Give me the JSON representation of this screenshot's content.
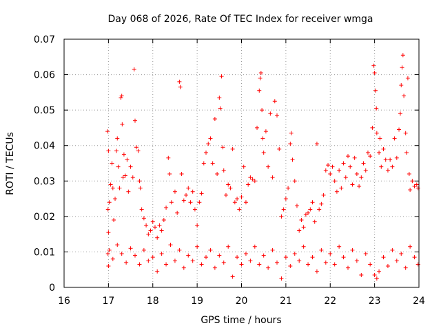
{
  "chart_data": {
    "type": "scatter",
    "title": "Day 068 of 2026, Rate Of TEC Index for receiver wmga",
    "xlabel": "GPS time / hours",
    "ylabel": "ROTI / TECUs",
    "xlim": [
      16,
      24
    ],
    "ylim": [
      0,
      0.07
    ],
    "x_ticks": [
      "16",
      "17",
      "18",
      "19",
      "20",
      "21",
      "22",
      "23",
      "24"
    ],
    "y_ticks": [
      "0",
      "0.01",
      "0.02",
      "0.03",
      "0.04",
      "0.05",
      "0.06",
      "0.07"
    ],
    "grid": true,
    "marker": "plus",
    "color": "#ff0000",
    "series": [
      {
        "values": [
          [
            16.98,
            0.044
          ],
          [
            17.0,
            0.0385
          ],
          [
            17.02,
            0.024
          ],
          [
            16.99,
            0.022
          ],
          [
            17.0,
            0.0155
          ],
          [
            16.99,
            0.0095
          ],
          [
            17.0,
            0.006
          ],
          [
            17.05,
            0.029
          ],
          [
            17.08,
            0.035
          ],
          [
            17.1,
            0.028
          ],
          [
            17.12,
            0.019
          ],
          [
            17.15,
            0.025
          ],
          [
            17.18,
            0.0385
          ],
          [
            17.2,
            0.042
          ],
          [
            17.22,
            0.034
          ],
          [
            17.25,
            0.028
          ],
          [
            17.28,
            0.0535
          ],
          [
            17.3,
            0.054
          ],
          [
            17.31,
            0.046
          ],
          [
            17.33,
            0.031
          ],
          [
            17.35,
            0.0375
          ],
          [
            17.38,
            0.0315
          ],
          [
            17.42,
            0.036
          ],
          [
            17.45,
            0.027
          ],
          [
            17.5,
            0.034
          ],
          [
            17.55,
            0.031
          ],
          [
            17.58,
            0.0615
          ],
          [
            17.6,
            0.047
          ],
          [
            17.63,
            0.0395
          ],
          [
            17.67,
            0.0385
          ],
          [
            17.7,
            0.03
          ],
          [
            17.72,
            0.028
          ],
          [
            17.75,
            0.022
          ],
          [
            17.8,
            0.0195
          ],
          [
            17.85,
            0.0175
          ],
          [
            17.9,
            0.015
          ],
          [
            17.95,
            0.016
          ],
          [
            18.0,
            0.0185
          ],
          [
            18.05,
            0.017
          ],
          [
            18.1,
            0.014
          ],
          [
            18.15,
            0.0175
          ],
          [
            18.2,
            0.016
          ],
          [
            18.25,
            0.019
          ],
          [
            18.3,
            0.0225
          ],
          [
            18.35,
            0.0365
          ],
          [
            18.38,
            0.032
          ],
          [
            18.42,
            0.024
          ],
          [
            18.5,
            0.027
          ],
          [
            18.55,
            0.021
          ],
          [
            18.6,
            0.058
          ],
          [
            18.62,
            0.0565
          ],
          [
            18.65,
            0.032
          ],
          [
            18.7,
            0.0245
          ],
          [
            18.75,
            0.026
          ],
          [
            18.8,
            0.028
          ],
          [
            18.85,
            0.024
          ],
          [
            18.9,
            0.027
          ],
          [
            18.95,
            0.022
          ],
          [
            19.0,
            0.0175
          ],
          [
            19.05,
            0.024
          ],
          [
            19.1,
            0.0265
          ],
          [
            19.15,
            0.035
          ],
          [
            19.2,
            0.038
          ],
          [
            19.25,
            0.0405
          ],
          [
            19.3,
            0.042
          ],
          [
            19.35,
            0.035
          ],
          [
            19.4,
            0.0475
          ],
          [
            19.45,
            0.032
          ],
          [
            19.5,
            0.0535
          ],
          [
            19.52,
            0.0505
          ],
          [
            19.55,
            0.0595
          ],
          [
            19.58,
            0.0395
          ],
          [
            19.6,
            0.033
          ],
          [
            19.65,
            0.026
          ],
          [
            19.7,
            0.029
          ],
          [
            19.75,
            0.028
          ],
          [
            19.8,
            0.039
          ],
          [
            19.85,
            0.024
          ],
          [
            19.9,
            0.025
          ],
          [
            19.95,
            0.022
          ],
          [
            20.0,
            0.0255
          ],
          [
            20.05,
            0.034
          ],
          [
            20.1,
            0.024
          ],
          [
            20.15,
            0.029
          ],
          [
            20.2,
            0.031
          ],
          [
            20.25,
            0.0305
          ],
          [
            20.3,
            0.03
          ],
          [
            20.35,
            0.045
          ],
          [
            20.4,
            0.0555
          ],
          [
            20.42,
            0.059
          ],
          [
            20.44,
            0.0605
          ],
          [
            20.46,
            0.05
          ],
          [
            20.48,
            0.042
          ],
          [
            20.5,
            0.038
          ],
          [
            20.55,
            0.044
          ],
          [
            20.6,
            0.034
          ],
          [
            20.65,
            0.049
          ],
          [
            20.7,
            0.031
          ],
          [
            20.75,
            0.0525
          ],
          [
            20.8,
            0.0485
          ],
          [
            20.85,
            0.039
          ],
          [
            20.9,
            0.02
          ],
          [
            20.95,
            0.022
          ],
          [
            21.0,
            0.025
          ],
          [
            21.05,
            0.028
          ],
          [
            21.1,
            0.0405
          ],
          [
            21.12,
            0.0435
          ],
          [
            21.15,
            0.036
          ],
          [
            21.2,
            0.03
          ],
          [
            21.25,
            0.023
          ],
          [
            21.3,
            0.016
          ],
          [
            21.35,
            0.019
          ],
          [
            21.4,
            0.017
          ],
          [
            21.45,
            0.0205
          ],
          [
            21.5,
            0.021
          ],
          [
            21.55,
            0.022
          ],
          [
            21.6,
            0.024
          ],
          [
            21.65,
            0.0185
          ],
          [
            21.7,
            0.0405
          ],
          [
            21.75,
            0.022
          ],
          [
            21.8,
            0.0235
          ],
          [
            21.85,
            0.026
          ],
          [
            21.9,
            0.033
          ],
          [
            21.95,
            0.0345
          ],
          [
            22.0,
            0.032
          ],
          [
            22.05,
            0.034
          ],
          [
            22.1,
            0.03
          ],
          [
            22.15,
            0.027
          ],
          [
            22.2,
            0.033
          ],
          [
            22.25,
            0.028
          ],
          [
            22.3,
            0.035
          ],
          [
            22.35,
            0.031
          ],
          [
            22.4,
            0.037
          ],
          [
            22.45,
            0.034
          ],
          [
            22.5,
            0.029
          ],
          [
            22.55,
            0.0365
          ],
          [
            22.6,
            0.032
          ],
          [
            22.65,
            0.0285
          ],
          [
            22.7,
            0.031
          ],
          [
            22.75,
            0.035
          ],
          [
            22.8,
            0.033
          ],
          [
            22.85,
            0.038
          ],
          [
            22.9,
            0.037
          ],
          [
            22.95,
            0.045
          ],
          [
            22.98,
            0.0625
          ],
          [
            23.0,
            0.0605
          ],
          [
            23.02,
            0.0555
          ],
          [
            23.04,
            0.0505
          ],
          [
            23.05,
            0.0435
          ],
          [
            23.1,
            0.038
          ],
          [
            23.12,
            0.042
          ],
          [
            23.15,
            0.034
          ],
          [
            23.2,
            0.039
          ],
          [
            23.25,
            0.036
          ],
          [
            23.3,
            0.033
          ],
          [
            23.35,
            0.036
          ],
          [
            23.4,
            0.034
          ],
          [
            23.45,
            0.042
          ],
          [
            23.5,
            0.0365
          ],
          [
            23.55,
            0.0445
          ],
          [
            23.58,
            0.049
          ],
          [
            23.6,
            0.057
          ],
          [
            23.62,
            0.062
          ],
          [
            23.64,
            0.0655
          ],
          [
            23.66,
            0.054
          ],
          [
            23.7,
            0.0435
          ],
          [
            23.72,
            0.038
          ],
          [
            23.75,
            0.059
          ],
          [
            23.78,
            0.032
          ],
          [
            23.8,
            0.0275
          ],
          [
            23.85,
            0.03
          ],
          [
            23.9,
            0.0285
          ],
          [
            23.95,
            0.029
          ],
          [
            23.98,
            0.028
          ],
          [
            17.02,
            0.0105
          ],
          [
            17.1,
            0.008
          ],
          [
            17.2,
            0.012
          ],
          [
            17.3,
            0.0095
          ],
          [
            17.4,
            0.007
          ],
          [
            17.5,
            0.011
          ],
          [
            17.6,
            0.009
          ],
          [
            17.7,
            0.0065
          ],
          [
            17.8,
            0.0105
          ],
          [
            17.9,
            0.0075
          ],
          [
            18.0,
            0.0085
          ],
          [
            18.1,
            0.0045
          ],
          [
            18.2,
            0.0095
          ],
          [
            18.3,
            0.0065
          ],
          [
            18.4,
            0.012
          ],
          [
            18.5,
            0.0075
          ],
          [
            18.6,
            0.0105
          ],
          [
            18.7,
            0.0055
          ],
          [
            18.8,
            0.009
          ],
          [
            18.9,
            0.0075
          ],
          [
            19.0,
            0.0115
          ],
          [
            19.1,
            0.0065
          ],
          [
            19.2,
            0.0085
          ],
          [
            19.3,
            0.0105
          ],
          [
            19.4,
            0.0055
          ],
          [
            19.5,
            0.009
          ],
          [
            19.6,
            0.007
          ],
          [
            19.7,
            0.0115
          ],
          [
            19.8,
            0.003
          ],
          [
            19.9,
            0.0085
          ],
          [
            20.0,
            0.0065
          ],
          [
            20.1,
            0.0095
          ],
          [
            20.2,
            0.0075
          ],
          [
            20.3,
            0.0115
          ],
          [
            20.4,
            0.0065
          ],
          [
            20.5,
            0.009
          ],
          [
            20.6,
            0.0055
          ],
          [
            20.7,
            0.0105
          ],
          [
            20.8,
            0.007
          ],
          [
            20.9,
            0.0025
          ],
          [
            21.0,
            0.0085
          ],
          [
            21.1,
            0.006
          ],
          [
            21.2,
            0.0095
          ],
          [
            21.3,
            0.0075
          ],
          [
            21.4,
            0.0115
          ],
          [
            21.5,
            0.0065
          ],
          [
            21.6,
            0.0085
          ],
          [
            21.7,
            0.0045
          ],
          [
            21.8,
            0.0105
          ],
          [
            21.9,
            0.007
          ],
          [
            22.0,
            0.0095
          ],
          [
            22.1,
            0.0065
          ],
          [
            22.2,
            0.0115
          ],
          [
            22.3,
            0.0085
          ],
          [
            22.4,
            0.0055
          ],
          [
            22.5,
            0.0105
          ],
          [
            22.6,
            0.0075
          ],
          [
            22.7,
            0.0035
          ],
          [
            22.8,
            0.0095
          ],
          [
            22.9,
            0.0065
          ],
          [
            23.0,
            0.0035
          ],
          [
            23.05,
            0.0025
          ],
          [
            23.1,
            0.0045
          ],
          [
            23.2,
            0.0085
          ],
          [
            23.3,
            0.006
          ],
          [
            23.4,
            0.0105
          ],
          [
            23.5,
            0.0075
          ],
          [
            23.6,
            0.0095
          ],
          [
            23.7,
            0.0055
          ],
          [
            23.8,
            0.0115
          ],
          [
            23.9,
            0.0085
          ],
          [
            23.98,
            0.0065
          ]
        ]
      }
    ]
  }
}
